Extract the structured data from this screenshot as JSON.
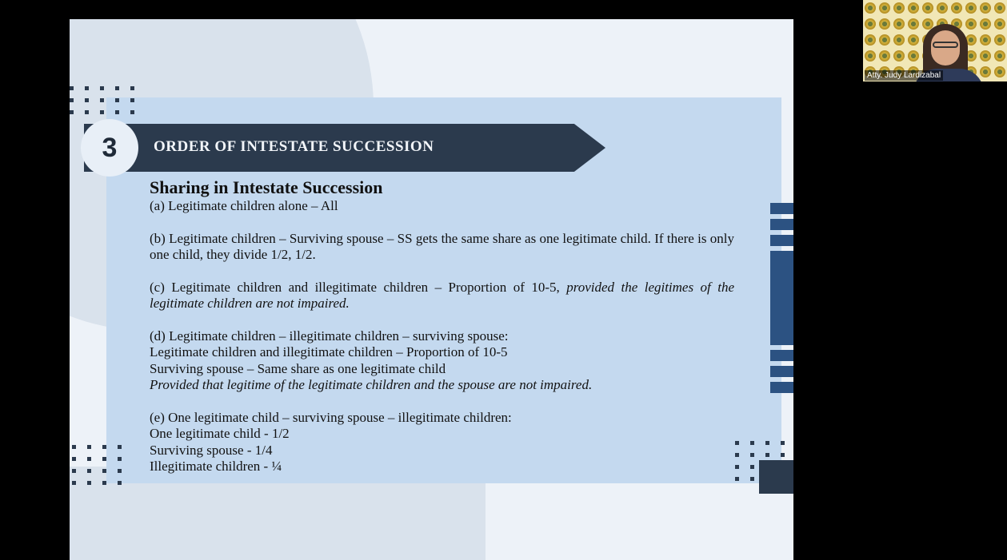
{
  "slide": {
    "number": "3",
    "section_title": "ORDER OF INTESTATE SUCCESSION",
    "heading": "Sharing in Intestate Succession",
    "items": {
      "a": "(a) Legitimate children alone – All",
      "b": "(b) Legitimate children – Surviving spouse – SS gets the same share as one legitimate child. If there is only one child, they divide 1/2, 1/2.",
      "c_text": "(c) Legitimate children and illegitimate children – Proportion of 10-5, ",
      "c_italic": "provided the legitimes of the legitimate children are not impaired.",
      "d_line1": "(d) Legitimate children – illegitimate children – surviving spouse:",
      "d_line2": "Legitimate children and illegitimate children – Proportion of 10-5",
      "d_line3": "Surviving spouse – Same share as one legitimate child",
      "d_line4": "Provided that legitime of the legitimate children and the spouse are not impaired.",
      "e_line1": "(e) One legitimate child – surviving spouse – illegitimate children:",
      "e_line2": "One legitimate child - 1/2",
      "e_line3": "Surviving spouse - 1/4",
      "e_line4": "Illegitimate children - ¼"
    }
  },
  "participant": {
    "name": "Atty. Judy Lardizabal"
  },
  "colors": {
    "banner": "#2b3a4d",
    "panel": "#c4d9ef",
    "accent_bars": "#2c5282"
  }
}
